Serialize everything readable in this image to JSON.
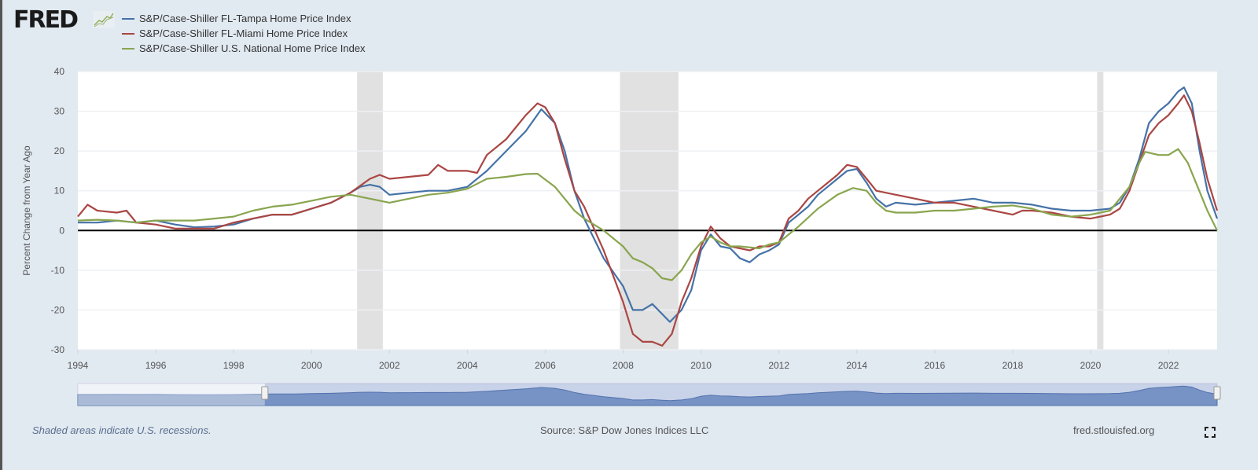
{
  "header": {
    "logo_text": "FRED"
  },
  "footer": {
    "recession_note": "Shaded areas indicate U.S. recessions.",
    "source": "Source: S&P Dow Jones Indices LLC",
    "site": "fred.stlouisfed.org"
  },
  "chart_data": {
    "type": "line",
    "title": "",
    "xlabel": "",
    "ylabel": "Percent Change from Year Ago",
    "xlim": [
      1994,
      2023.25
    ],
    "ylim": [
      -30,
      40
    ],
    "x_ticks": [
      "1994",
      "1996",
      "1998",
      "2000",
      "2002",
      "2004",
      "2006",
      "2008",
      "2010",
      "2012",
      "2014",
      "2016",
      "2018",
      "2020",
      "2022"
    ],
    "y_ticks": [
      "40",
      "30",
      "20",
      "10",
      "0",
      "-10",
      "-20",
      "-30"
    ],
    "grid": true,
    "legend_position": "top-left",
    "recessions": [
      [
        2001.17,
        2001.83
      ],
      [
        2007.92,
        2009.42
      ],
      [
        2020.17,
        2020.33
      ]
    ],
    "series": [
      {
        "name": "S&P/Case-Shiller FL-Tampa Home Price Index",
        "color": "#4572a7",
        "points": [
          [
            1994,
            2
          ],
          [
            1994.5,
            2
          ],
          [
            1995,
            2.5
          ],
          [
            1995.5,
            2
          ],
          [
            1996,
            2.5
          ],
          [
            1996.5,
            1.5
          ],
          [
            1997,
            0.8
          ],
          [
            1997.5,
            1
          ],
          [
            1998,
            1.5
          ],
          [
            1998.5,
            3
          ],
          [
            1999,
            4
          ],
          [
            1999.5,
            4
          ],
          [
            2000,
            5.5
          ],
          [
            2000.5,
            7
          ],
          [
            2001,
            9.5
          ],
          [
            2001.25,
            11
          ],
          [
            2001.5,
            11.5
          ],
          [
            2001.75,
            11
          ],
          [
            2002,
            9
          ],
          [
            2002.5,
            9.5
          ],
          [
            2003,
            10
          ],
          [
            2003.5,
            10
          ],
          [
            2004,
            11
          ],
          [
            2004.5,
            15
          ],
          [
            2005,
            20
          ],
          [
            2005.5,
            25
          ],
          [
            2005.9,
            30.5
          ],
          [
            2006.25,
            27
          ],
          [
            2006.5,
            20
          ],
          [
            2006.75,
            10
          ],
          [
            2007,
            3
          ],
          [
            2007.5,
            -7
          ],
          [
            2008,
            -14
          ],
          [
            2008.25,
            -20
          ],
          [
            2008.5,
            -20
          ],
          [
            2008.75,
            -18.5
          ],
          [
            2009,
            -21
          ],
          [
            2009.2,
            -23
          ],
          [
            2009.5,
            -20
          ],
          [
            2009.75,
            -15
          ],
          [
            2010,
            -5
          ],
          [
            2010.25,
            -1
          ],
          [
            2010.5,
            -4
          ],
          [
            2010.75,
            -4.5
          ],
          [
            2011,
            -7
          ],
          [
            2011.25,
            -8
          ],
          [
            2011.5,
            -6
          ],
          [
            2011.75,
            -5
          ],
          [
            2012,
            -3.5
          ],
          [
            2012.25,
            2
          ],
          [
            2012.5,
            4
          ],
          [
            2012.75,
            6
          ],
          [
            2013,
            9
          ],
          [
            2013.25,
            11
          ],
          [
            2013.5,
            13
          ],
          [
            2013.75,
            15
          ],
          [
            2014,
            15.5
          ],
          [
            2014.25,
            12
          ],
          [
            2014.5,
            8
          ],
          [
            2014.75,
            6
          ],
          [
            2015,
            7
          ],
          [
            2015.5,
            6.5
          ],
          [
            2016,
            7
          ],
          [
            2016.5,
            7.5
          ],
          [
            2017,
            8
          ],
          [
            2017.5,
            7
          ],
          [
            2018,
            7
          ],
          [
            2018.5,
            6.5
          ],
          [
            2019,
            5.5
          ],
          [
            2019.5,
            5
          ],
          [
            2020,
            5
          ],
          [
            2020.5,
            5.5
          ],
          [
            2020.75,
            7
          ],
          [
            2021,
            11
          ],
          [
            2021.25,
            18
          ],
          [
            2021.5,
            27
          ],
          [
            2021.75,
            30
          ],
          [
            2022,
            32
          ],
          [
            2022.25,
            35
          ],
          [
            2022.4,
            36
          ],
          [
            2022.6,
            32
          ],
          [
            2022.8,
            20
          ],
          [
            2023,
            10
          ],
          [
            2023.25,
            3
          ]
        ]
      },
      {
        "name": "S&P/Case-Shiller FL-Miami Home Price Index",
        "color": "#aa4643",
        "points": [
          [
            1994,
            3.5
          ],
          [
            1994.25,
            6.5
          ],
          [
            1994.5,
            5
          ],
          [
            1995,
            4.5
          ],
          [
            1995.25,
            5
          ],
          [
            1995.5,
            2
          ],
          [
            1996,
            1.5
          ],
          [
            1996.5,
            0.5
          ],
          [
            1997,
            0.5
          ],
          [
            1997.5,
            0.5
          ],
          [
            1998,
            2
          ],
          [
            1998.5,
            3
          ],
          [
            1999,
            4
          ],
          [
            1999.5,
            4
          ],
          [
            2000,
            5.5
          ],
          [
            2000.5,
            7
          ],
          [
            2001,
            9.5
          ],
          [
            2001.5,
            13
          ],
          [
            2001.75,
            14
          ],
          [
            2002,
            13
          ],
          [
            2002.5,
            13.5
          ],
          [
            2003,
            14
          ],
          [
            2003.25,
            16.5
          ],
          [
            2003.5,
            15
          ],
          [
            2004,
            15
          ],
          [
            2004.25,
            14.5
          ],
          [
            2004.5,
            19
          ],
          [
            2005,
            23
          ],
          [
            2005.5,
            29
          ],
          [
            2005.8,
            32
          ],
          [
            2006,
            31
          ],
          [
            2006.25,
            27
          ],
          [
            2006.5,
            18
          ],
          [
            2006.75,
            10
          ],
          [
            2007,
            6
          ],
          [
            2007.5,
            -5
          ],
          [
            2008,
            -18
          ],
          [
            2008.25,
            -26
          ],
          [
            2008.5,
            -28
          ],
          [
            2008.75,
            -28
          ],
          [
            2009,
            -29
          ],
          [
            2009.25,
            -26
          ],
          [
            2009.5,
            -18
          ],
          [
            2009.75,
            -12
          ],
          [
            2010,
            -4
          ],
          [
            2010.25,
            1
          ],
          [
            2010.5,
            -2
          ],
          [
            2010.75,
            -4
          ],
          [
            2011,
            -4.5
          ],
          [
            2011.25,
            -5
          ],
          [
            2011.5,
            -4
          ],
          [
            2011.75,
            -4
          ],
          [
            2012,
            -3
          ],
          [
            2012.25,
            3
          ],
          [
            2012.5,
            5
          ],
          [
            2012.75,
            8
          ],
          [
            2013,
            10
          ],
          [
            2013.25,
            12
          ],
          [
            2013.5,
            14
          ],
          [
            2013.75,
            16.5
          ],
          [
            2014,
            16
          ],
          [
            2014.25,
            13
          ],
          [
            2014.5,
            10
          ],
          [
            2015,
            9
          ],
          [
            2015.5,
            8
          ],
          [
            2016,
            7
          ],
          [
            2016.5,
            7
          ],
          [
            2017,
            6
          ],
          [
            2017.5,
            5
          ],
          [
            2018,
            4
          ],
          [
            2018.25,
            5
          ],
          [
            2018.5,
            5
          ],
          [
            2019,
            4.5
          ],
          [
            2019.5,
            3.5
          ],
          [
            2020,
            3
          ],
          [
            2020.5,
            4
          ],
          [
            2020.75,
            5.5
          ],
          [
            2021,
            10
          ],
          [
            2021.25,
            17
          ],
          [
            2021.5,
            24
          ],
          [
            2021.75,
            27
          ],
          [
            2022,
            29
          ],
          [
            2022.25,
            32
          ],
          [
            2022.4,
            34
          ],
          [
            2022.6,
            30
          ],
          [
            2022.8,
            22
          ],
          [
            2023,
            13
          ],
          [
            2023.25,
            5
          ]
        ]
      },
      {
        "name": "S&P/Case-Shiller U.S. National Home Price Index",
        "color": "#89a54e",
        "points": [
          [
            1994,
            2.5
          ],
          [
            1994.5,
            2.7
          ],
          [
            1995,
            2.5
          ],
          [
            1995.5,
            2
          ],
          [
            1996,
            2.5
          ],
          [
            1996.5,
            2.5
          ],
          [
            1997,
            2.5
          ],
          [
            1997.5,
            3
          ],
          [
            1998,
            3.5
          ],
          [
            1998.5,
            5
          ],
          [
            1999,
            6
          ],
          [
            1999.5,
            6.5
          ],
          [
            2000,
            7.5
          ],
          [
            2000.5,
            8.5
          ],
          [
            2001,
            9
          ],
          [
            2001.5,
            8
          ],
          [
            2002,
            7
          ],
          [
            2002.5,
            8
          ],
          [
            2003,
            9
          ],
          [
            2003.5,
            9.5
          ],
          [
            2004,
            10.5
          ],
          [
            2004.5,
            13
          ],
          [
            2005,
            13.5
          ],
          [
            2005.5,
            14.2
          ],
          [
            2005.8,
            14.3
          ],
          [
            2006.25,
            11
          ],
          [
            2006.5,
            8
          ],
          [
            2006.75,
            5
          ],
          [
            2007,
            3
          ],
          [
            2007.5,
            0
          ],
          [
            2008,
            -4
          ],
          [
            2008.25,
            -7
          ],
          [
            2008.5,
            -8
          ],
          [
            2008.75,
            -9.5
          ],
          [
            2009,
            -12
          ],
          [
            2009.25,
            -12.5
          ],
          [
            2009.5,
            -10
          ],
          [
            2009.75,
            -6
          ],
          [
            2010,
            -3
          ],
          [
            2010.25,
            -1.5
          ],
          [
            2010.5,
            -3
          ],
          [
            2010.75,
            -4
          ],
          [
            2011,
            -4
          ],
          [
            2011.5,
            -4.5
          ],
          [
            2011.75,
            -3.5
          ],
          [
            2012,
            -3
          ],
          [
            2012.5,
            1
          ],
          [
            2013,
            5.5
          ],
          [
            2013.5,
            9
          ],
          [
            2013.9,
            10.7
          ],
          [
            2014.25,
            10
          ],
          [
            2014.5,
            7
          ],
          [
            2014.75,
            5
          ],
          [
            2015,
            4.5
          ],
          [
            2015.5,
            4.5
          ],
          [
            2016,
            5
          ],
          [
            2016.5,
            5
          ],
          [
            2017,
            5.5
          ],
          [
            2017.5,
            6
          ],
          [
            2018,
            6.3
          ],
          [
            2018.5,
            5.5
          ],
          [
            2019,
            4
          ],
          [
            2019.5,
            3.5
          ],
          [
            2020,
            4
          ],
          [
            2020.5,
            5
          ],
          [
            2021,
            11
          ],
          [
            2021.25,
            17
          ],
          [
            2021.4,
            19.8
          ],
          [
            2021.75,
            19
          ],
          [
            2022,
            19
          ],
          [
            2022.25,
            20.5
          ],
          [
            2022.5,
            17
          ],
          [
            2022.75,
            11
          ],
          [
            2023,
            5
          ],
          [
            2023.25,
            0
          ]
        ]
      }
    ]
  }
}
